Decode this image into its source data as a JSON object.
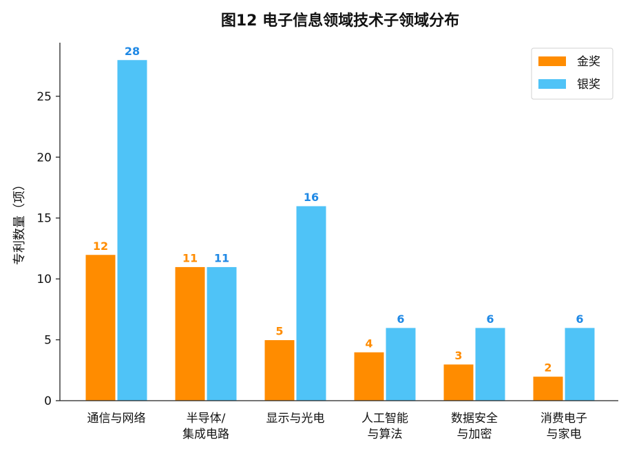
{
  "chart_data": {
    "type": "bar",
    "title": "图12  电子信息领域技术子领域分布",
    "xlabel": "",
    "ylabel": "专利数量（项）",
    "categories": [
      [
        "通信与网络"
      ],
      [
        "半导体/",
        "集成电路"
      ],
      [
        "显示与光电"
      ],
      [
        "人工智能",
        "与算法"
      ],
      [
        "数据安全",
        "与加密"
      ],
      [
        "消费电子",
        "与家电"
      ]
    ],
    "series": [
      {
        "name": "金奖",
        "values": [
          12,
          11,
          5,
          4,
          3,
          2
        ],
        "color": "#FF8C00",
        "label_color": "#FF8C00"
      },
      {
        "name": "银奖",
        "values": [
          28,
          11,
          16,
          6,
          6,
          6
        ],
        "color": "#4FC3F7",
        "label_color": "#1E88E5"
      }
    ],
    "ylim": [
      0,
      29.4
    ],
    "yticks": [
      0,
      5,
      10,
      15,
      20,
      25
    ],
    "grid": false,
    "legend_position": "top-right"
  }
}
